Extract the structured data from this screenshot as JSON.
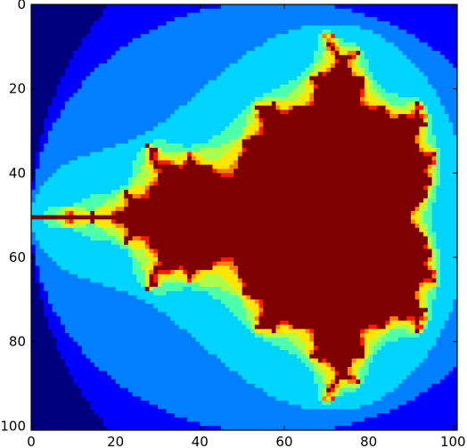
{
  "chart_data": {
    "type": "heatmap",
    "title": "",
    "xlabel": "",
    "ylabel": "",
    "x_ticks": [
      0,
      20,
      40,
      60,
      80,
      100
    ],
    "y_ticks": [
      0,
      20,
      40,
      60,
      80,
      100
    ],
    "xlim": [
      0,
      101
    ],
    "ylim": [
      101,
      0
    ],
    "y_axis_inverted": true,
    "grid": false,
    "legend": "none",
    "colormap": "jet",
    "description_of_values": "iteration count before escape (Mandelbrot set), clipped",
    "escape_levels": [
      0,
      1,
      2,
      3,
      4,
      5,
      6,
      7,
      8,
      9,
      10,
      11,
      12
    ],
    "plane": {
      "re_range": [
        -2.0,
        0.6
      ],
      "im_range": [
        -1.3,
        1.3
      ]
    },
    "colors": {
      "min": "#00007f",
      "max": "#7f0000",
      "palette": [
        "#00007f",
        "#0000ff",
        "#0080ff",
        "#00d4ff",
        "#4dffaa",
        "#aaff4d",
        "#ffe600",
        "#ff8000",
        "#ff1a00",
        "#7f0000"
      ]
    }
  }
}
